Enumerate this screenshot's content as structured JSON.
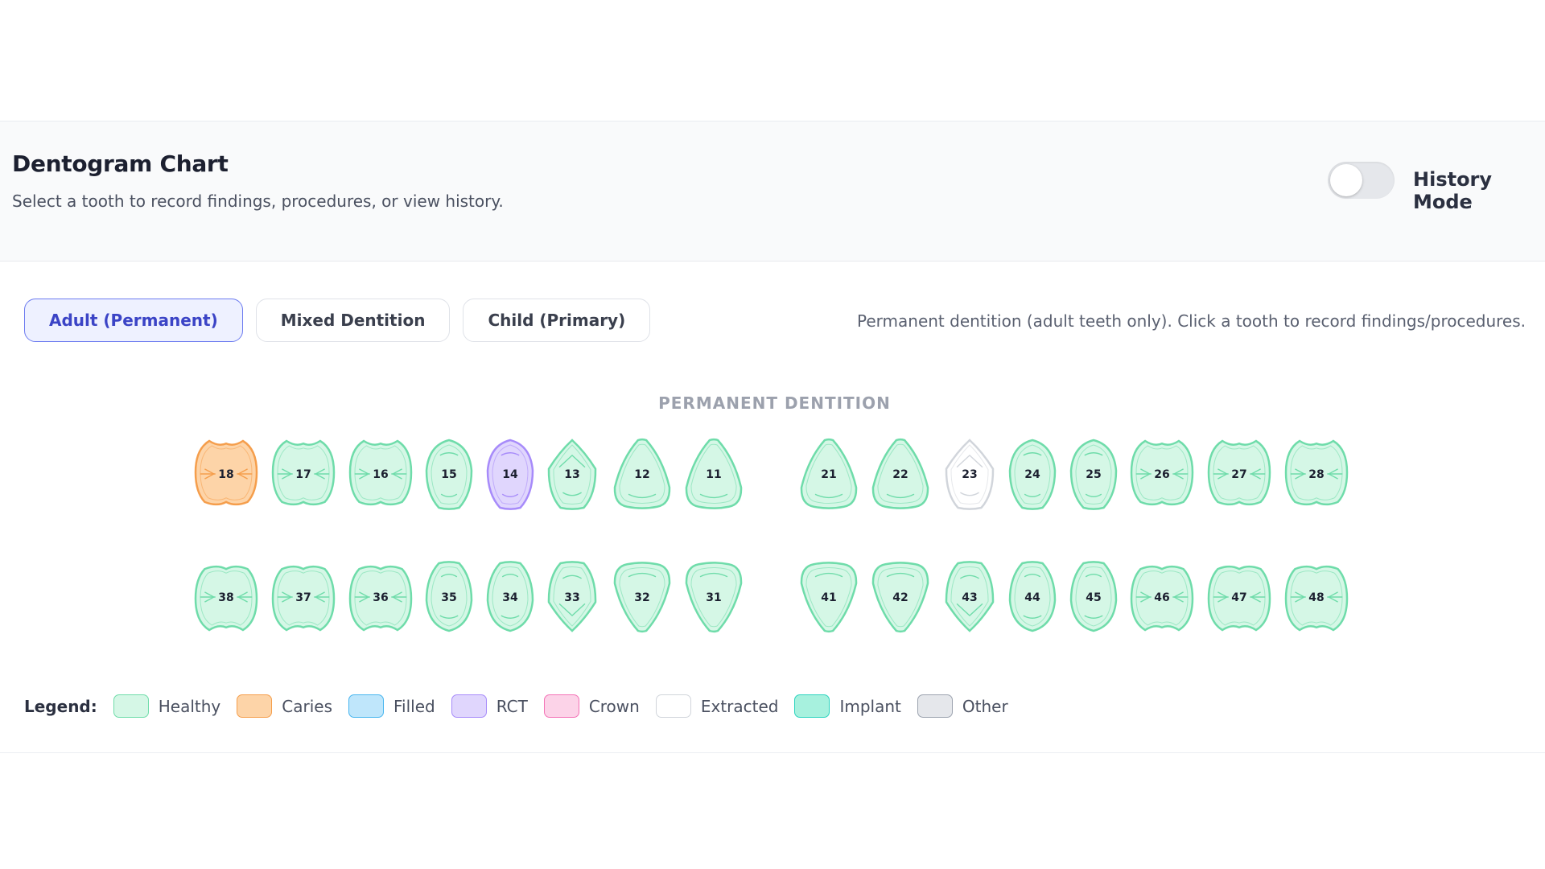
{
  "header": {
    "title": "Dentogram Chart",
    "subtitle": "Select a tooth to record findings, procedures, or view history.",
    "history_mode_label": "History Mode",
    "history_mode_on": false
  },
  "tabs": [
    {
      "label": "Adult (Permanent)",
      "active": true
    },
    {
      "label": "Mixed Dentition",
      "active": false
    },
    {
      "label": "Child (Primary)",
      "active": false
    }
  ],
  "tab_help": "Permanent dentition (adult teeth only). Click a tooth to record findings/procedures.",
  "section_title": "PERMANENT DENTITION",
  "upper_teeth": [
    {
      "number": "18",
      "type": "molar",
      "status": "caries"
    },
    {
      "number": "17",
      "type": "molar",
      "status": "healthy"
    },
    {
      "number": "16",
      "type": "molar",
      "status": "healthy"
    },
    {
      "number": "15",
      "type": "premolar",
      "status": "healthy"
    },
    {
      "number": "14",
      "type": "premolar",
      "status": "rct"
    },
    {
      "number": "13",
      "type": "canine",
      "status": "healthy"
    },
    {
      "number": "12",
      "type": "incisor",
      "status": "healthy"
    },
    {
      "number": "11",
      "type": "incisor",
      "status": "healthy"
    },
    {
      "number": "21",
      "type": "incisor",
      "status": "healthy"
    },
    {
      "number": "22",
      "type": "incisor",
      "status": "healthy"
    },
    {
      "number": "23",
      "type": "canine",
      "status": "extracted"
    },
    {
      "number": "24",
      "type": "premolar",
      "status": "healthy"
    },
    {
      "number": "25",
      "type": "premolar",
      "status": "healthy"
    },
    {
      "number": "26",
      "type": "molar",
      "status": "healthy"
    },
    {
      "number": "27",
      "type": "molar",
      "status": "healthy"
    },
    {
      "number": "28",
      "type": "molar",
      "status": "healthy"
    }
  ],
  "lower_teeth": [
    {
      "number": "38",
      "type": "molar",
      "status": "healthy"
    },
    {
      "number": "37",
      "type": "molar",
      "status": "healthy"
    },
    {
      "number": "36",
      "type": "molar",
      "status": "healthy"
    },
    {
      "number": "35",
      "type": "premolar",
      "status": "healthy"
    },
    {
      "number": "34",
      "type": "premolar",
      "status": "healthy"
    },
    {
      "number": "33",
      "type": "canine",
      "status": "healthy"
    },
    {
      "number": "32",
      "type": "incisor",
      "status": "healthy"
    },
    {
      "number": "31",
      "type": "incisor",
      "status": "healthy"
    },
    {
      "number": "41",
      "type": "incisor",
      "status": "healthy"
    },
    {
      "number": "42",
      "type": "incisor",
      "status": "healthy"
    },
    {
      "number": "43",
      "type": "canine",
      "status": "healthy"
    },
    {
      "number": "44",
      "type": "premolar",
      "status": "healthy"
    },
    {
      "number": "45",
      "type": "premolar",
      "status": "healthy"
    },
    {
      "number": "46",
      "type": "molar",
      "status": "healthy"
    },
    {
      "number": "47",
      "type": "molar",
      "status": "healthy"
    },
    {
      "number": "48",
      "type": "molar",
      "status": "healthy"
    }
  ],
  "legend": {
    "title": "Legend:",
    "items": [
      {
        "label": "Healthy",
        "key": "healthy",
        "fill": "#d5f7e6",
        "stroke": "#6fdcaa"
      },
      {
        "label": "Caries",
        "key": "caries",
        "fill": "#fdd4a8",
        "stroke": "#f59e4c"
      },
      {
        "label": "Filled",
        "key": "filled",
        "fill": "#bfe6fb",
        "stroke": "#49b6ef"
      },
      {
        "label": "RCT",
        "key": "rct",
        "fill": "#e0d6fd",
        "stroke": "#a78bfa"
      },
      {
        "label": "Crown",
        "key": "crown",
        "fill": "#fcd3e8",
        "stroke": "#f472b6"
      },
      {
        "label": "Extracted",
        "key": "extracted",
        "fill": "#ffffff",
        "stroke": "#d1d5db"
      },
      {
        "label": "Implant",
        "key": "implant",
        "fill": "#a7f1de",
        "stroke": "#2dd4bf"
      },
      {
        "label": "Other",
        "key": "other",
        "fill": "#e5e7eb",
        "stroke": "#9ca3af"
      }
    ]
  }
}
